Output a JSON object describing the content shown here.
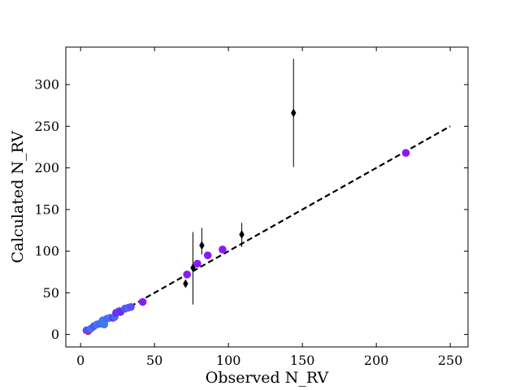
{
  "chart_data": {
    "type": "scatter",
    "title": "",
    "xlabel": "Observed N_RV",
    "ylabel": "Calculated N_RV",
    "xlim": [
      -10,
      262
    ],
    "ylim": [
      -15,
      345
    ],
    "x_ticks": [
      0,
      50,
      100,
      150,
      200,
      250
    ],
    "y_ticks": [
      0,
      50,
      100,
      150,
      200,
      250,
      300
    ],
    "grid": false,
    "legend": "none",
    "reference_line": {
      "style": "dashed",
      "color": "#000000",
      "points": [
        [
          2,
          2
        ],
        [
          250,
          250
        ]
      ]
    },
    "series": [
      {
        "marker": "circle",
        "points": [
          {
            "x": 5,
            "y": 4,
            "color": "#e8192c"
          },
          {
            "x": 4,
            "y": 5,
            "color": "#5f4bf5"
          },
          {
            "x": 7,
            "y": 7,
            "color": "#3c78f0"
          },
          {
            "x": 9,
            "y": 10,
            "color": "#5a50f5"
          },
          {
            "x": 11,
            "y": 12,
            "color": "#3a7df0"
          },
          {
            "x": 13,
            "y": 13,
            "color": "#4a68f2"
          },
          {
            "x": 15,
            "y": 17,
            "color": "#3a7df0"
          },
          {
            "x": 16,
            "y": 12,
            "color": "#3a7df0"
          },
          {
            "x": 18,
            "y": 19,
            "color": "#4a68f2"
          },
          {
            "x": 20,
            "y": 20,
            "color": "#3a7df0"
          },
          {
            "x": 22,
            "y": 20,
            "color": "#6a2af8"
          },
          {
            "x": 23,
            "y": 21,
            "color": "#4a68f2"
          },
          {
            "x": 24,
            "y": 26,
            "color": "#6a2af8"
          },
          {
            "x": 26,
            "y": 28,
            "color": "#5a50f5"
          },
          {
            "x": 27,
            "y": 27,
            "color": "#6a2af8"
          },
          {
            "x": 30,
            "y": 31,
            "color": "#5a50f5"
          },
          {
            "x": 32,
            "y": 32,
            "color": "#4a68f2"
          },
          {
            "x": 34,
            "y": 33,
            "color": "#5a50f5"
          },
          {
            "x": 42,
            "y": 39,
            "color": "#8a1af8"
          },
          {
            "x": 72,
            "y": 72,
            "color": "#8a1af8"
          },
          {
            "x": 79,
            "y": 85,
            "color": "#8a1af8"
          },
          {
            "x": 86,
            "y": 95,
            "color": "#8a1af8"
          },
          {
            "x": 96,
            "y": 102,
            "color": "#8a1af8"
          },
          {
            "x": 220,
            "y": 218,
            "color": "#8a1af8"
          }
        ]
      },
      {
        "marker": "thin_diamond",
        "color": "#000000",
        "points": [
          {
            "x": 71,
            "y": 61,
            "err_low": 4,
            "err_high": 4
          },
          {
            "x": 76,
            "y": 80,
            "err_low": 44,
            "err_high": 43
          },
          {
            "x": 82,
            "y": 107,
            "err_low": 11,
            "err_high": 21
          },
          {
            "x": 109,
            "y": 120,
            "err_low": 15,
            "err_high": 14
          },
          {
            "x": 144,
            "y": 266,
            "err_low": 65,
            "err_high": 65
          }
        ]
      }
    ]
  }
}
